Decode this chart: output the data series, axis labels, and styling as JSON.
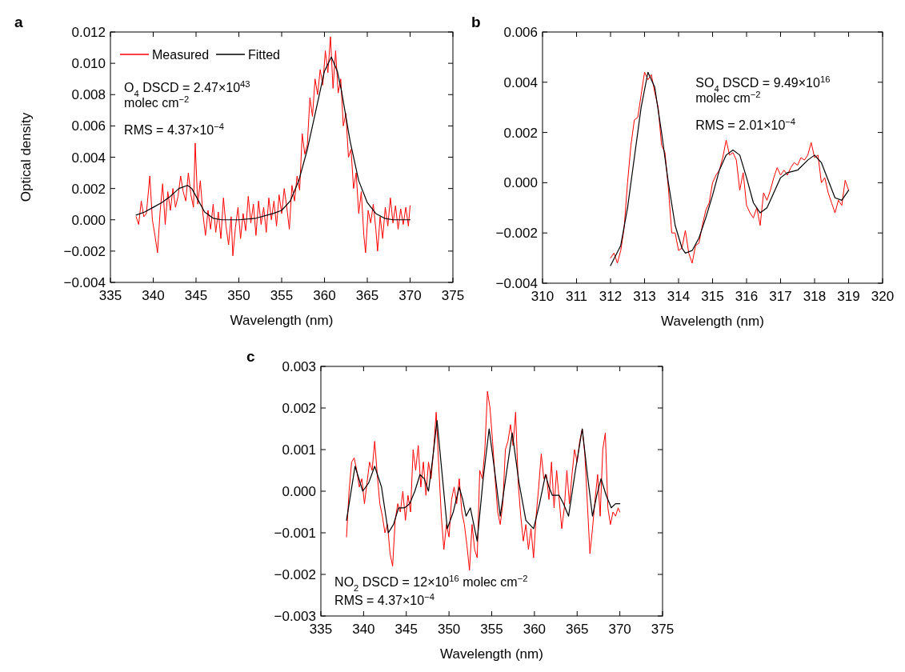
{
  "chart_data": [
    {
      "type": "line",
      "title": "a",
      "xlabel": "Wavelength (nm)",
      "ylabel": "Optical density",
      "legend": "top left",
      "xlim": [
        335,
        375
      ],
      "xticks": [
        335,
        340,
        345,
        350,
        355,
        360,
        365,
        370,
        375
      ],
      "ylim": [
        -0.004,
        0.012
      ],
      "yticks": [
        {
          "value": -0.004,
          "label": "−0.004"
        },
        {
          "value": -0.002,
          "label": "−0.002"
        },
        {
          "value": 0,
          "label": "0.000"
        },
        {
          "value": 0.002,
          "label": "0.002"
        },
        {
          "value": 0.004,
          "label": "0.004"
        },
        {
          "value": 0.006,
          "label": "0.006"
        },
        {
          "value": 0.008,
          "label": "0.008"
        },
        {
          "value": 0.01,
          "label": "0.010"
        },
        {
          "value": 0.012,
          "label": "0.012"
        }
      ],
      "annotations": [
        "O$_{4}$ DSCD = 2.47×10$^{43}$",
        "molec cm$^{−2}$",
        "RMS = 4.37×10$^{−4}$"
      ],
      "series": [
        {
          "name": "Measured",
          "color": "#ff0000",
          "x": [
            338.0,
            338.3,
            338.6,
            338.9,
            339.2,
            339.6,
            339.9,
            340.2,
            340.5,
            340.8,
            341.1,
            341.4,
            341.7,
            342.0,
            342.3,
            342.6,
            342.9,
            343.2,
            343.5,
            343.8,
            344.1,
            344.4,
            344.7,
            344.9,
            345.2,
            345.5,
            345.8,
            346.1,
            346.4,
            346.7,
            347.0,
            347.3,
            347.6,
            347.9,
            348.2,
            348.5,
            348.8,
            349.1,
            349.3,
            349.6,
            349.9,
            350.2,
            350.5,
            350.8,
            351.1,
            351.4,
            351.7,
            352.0,
            352.3,
            352.6,
            352.9,
            353.2,
            353.5,
            353.8,
            354.1,
            354.4,
            354.7,
            355.0,
            355.3,
            355.6,
            355.9,
            356.2,
            356.5,
            356.8,
            357.1,
            357.4,
            357.7,
            358.0,
            358.3,
            358.6,
            358.9,
            359.2,
            359.5,
            359.8,
            360.1,
            360.4,
            360.7,
            361.0,
            361.3,
            361.6,
            361.9,
            362.2,
            362.5,
            362.8,
            363.1,
            363.4,
            363.7,
            364.0,
            364.3,
            364.6,
            364.8,
            365.1,
            365.4,
            365.7,
            366.0,
            366.2,
            366.5,
            366.8,
            367.1,
            367.4,
            367.7,
            368.0,
            368.3,
            368.6,
            368.9,
            369.2,
            369.5,
            369.8,
            370.0
          ],
          "values": [
            0.0002,
            -0.0003,
            0.0012,
            0.0002,
            0.0004,
            0.0028,
            0.0,
            -0.001,
            -0.0021,
            0.0005,
            0.0023,
            -0.0003,
            0.0018,
            0.0006,
            0.002,
            0.0008,
            0.0015,
            0.0028,
            0.0018,
            0.0012,
            0.003,
            0.0016,
            0.0008,
            0.0049,
            0.001,
            0.0025,
            0.0004,
            -0.001,
            0.0006,
            -0.0006,
            0.001,
            -0.0008,
            0.0005,
            -0.0012,
            0.0014,
            -0.0004,
            -0.0016,
            0.0002,
            -0.0023,
            -0.0005,
            0.0008,
            -0.0012,
            0.0004,
            -0.0007,
            0.0015,
            -0.0002,
            0.001,
            -0.001,
            0.0012,
            -0.0003,
            0.0008,
            -0.0008,
            0.0014,
            0.0,
            0.0012,
            -0.0004,
            0.0016,
            0.0004,
            0.002,
            0.0008,
            -0.0006,
            0.0022,
            0.0012,
            0.0028,
            0.0019,
            0.0055,
            0.0042,
            0.0048,
            0.0078,
            0.0066,
            0.009,
            0.008,
            0.0096,
            0.0086,
            0.0108,
            0.0094,
            0.0117,
            0.0084,
            0.0108,
            0.0081,
            0.009,
            0.006,
            0.0068,
            0.004,
            0.0045,
            0.002,
            0.003,
            0.0004,
            0.0018,
            -0.001,
            -0.0021,
            0.0006,
            -0.0002,
            0.001,
            -0.0006,
            -0.002,
            0.0002,
            -0.0012,
            0.0008,
            -0.0004,
            0.0014,
            -0.0002,
            0.0009,
            -0.0006,
            0.0007,
            -0.0003,
            0.0008,
            -0.0004,
            0.0009
          ]
        },
        {
          "name": "Fitted",
          "color": "#000000",
          "x": [
            338,
            339,
            340,
            341,
            342,
            343,
            344,
            344.5,
            345,
            346,
            347,
            348,
            350,
            352,
            354,
            355,
            356,
            357,
            358,
            359,
            360,
            360.8,
            361.5,
            362,
            363,
            364,
            365,
            366,
            367,
            368,
            370
          ],
          "values": [
            0.0003,
            0.0005,
            0.0008,
            0.0011,
            0.0015,
            0.002,
            0.0022,
            0.002,
            0.0015,
            0.0005,
            0.0001,
            0.0,
            0.0,
            0.0001,
            0.0004,
            0.0006,
            0.0012,
            0.0025,
            0.0045,
            0.007,
            0.0095,
            0.0104,
            0.0095,
            0.0082,
            0.005,
            0.0025,
            0.0011,
            0.0004,
            0.0001,
            0.0,
            0.0
          ]
        }
      ]
    },
    {
      "type": "line",
      "title": "b",
      "xlabel": "Wavelength (nm)",
      "xlim": [
        310,
        320
      ],
      "xticks": [
        310,
        311,
        312,
        313,
        314,
        315,
        316,
        317,
        318,
        319,
        320
      ],
      "ylim": [
        -0.004,
        0.006
      ],
      "yticks": [
        {
          "value": -0.004,
          "label": "−0.004"
        },
        {
          "value": -0.002,
          "label": "−0.002"
        },
        {
          "value": 0,
          "label": "0.000"
        },
        {
          "value": 0.002,
          "label": "0.002"
        },
        {
          "value": 0.004,
          "label": "0.004"
        },
        {
          "value": 0.006,
          "label": "0.006"
        }
      ],
      "annotations": [
        "SO$_{4}$ DSCD = 9.49×10$^{16}$",
        "molec cm$^{−2}$",
        "RMS = 2.01×10$^{−4}$"
      ],
      "series": [
        {
          "color": "#ff0000",
          "x": [
            312.0,
            312.1,
            312.2,
            312.3,
            312.4,
            312.5,
            312.6,
            312.7,
            312.8,
            312.9,
            313.0,
            313.1,
            313.2,
            313.3,
            313.4,
            313.5,
            313.6,
            313.7,
            313.8,
            313.9,
            314.0,
            314.1,
            314.2,
            314.3,
            314.4,
            314.5,
            314.6,
            314.7,
            314.8,
            314.9,
            315.0,
            315.1,
            315.2,
            315.3,
            315.4,
            315.5,
            315.6,
            315.7,
            315.8,
            315.9,
            316.0,
            316.1,
            316.2,
            316.3,
            316.4,
            316.5,
            316.6,
            316.7,
            316.8,
            316.9,
            317.0,
            317.1,
            317.2,
            317.3,
            317.4,
            317.5,
            317.6,
            317.7,
            317.8,
            317.9,
            318.0,
            318.1,
            318.2,
            318.3,
            318.4,
            318.5,
            318.6,
            318.7,
            318.8,
            318.9,
            319.0
          ],
          "values": [
            -0.003,
            -0.0028,
            -0.0032,
            -0.0027,
            -0.0018,
            0.0,
            0.0015,
            0.0025,
            0.0026,
            0.0035,
            0.0044,
            0.0041,
            0.0043,
            0.0036,
            0.003,
            0.0015,
            0.0012,
            -0.0002,
            -0.002,
            -0.002,
            -0.0027,
            -0.0026,
            -0.0019,
            -0.0028,
            -0.0032,
            -0.0025,
            -0.0024,
            -0.0017,
            -0.0011,
            -0.0008,
            0.0,
            0.0003,
            0.0005,
            0.001,
            0.0017,
            0.0011,
            0.0012,
            0.0009,
            -0.0003,
            0.0004,
            -0.0009,
            -0.0012,
            -0.0014,
            -0.001,
            -0.0017,
            -0.0004,
            -0.0007,
            -0.0003,
            0.0002,
            0.0006,
            0.0003,
            0.0005,
            0.0003,
            0.0006,
            0.0008,
            0.0007,
            0.001,
            0.0009,
            0.0011,
            0.0016,
            0.001,
            0.0011,
            0.0,
            0.0002,
            -0.0004,
            -0.0008,
            -0.0012,
            -0.0007,
            -0.0009,
            0.0001,
            -0.0003
          ]
        },
        {
          "color": "#000000",
          "x": [
            312.0,
            312.3,
            312.5,
            312.7,
            312.9,
            313.1,
            313.3,
            313.5,
            313.7,
            313.9,
            314.1,
            314.2,
            314.4,
            314.6,
            314.8,
            315.0,
            315.2,
            315.4,
            315.6,
            315.8,
            316.0,
            316.2,
            316.4,
            316.6,
            316.8,
            317.0,
            317.2,
            317.5,
            317.8,
            318.0,
            318.2,
            318.4,
            318.6,
            318.8,
            319.0
          ],
          "values": [
            -0.0033,
            -0.0025,
            -0.001,
            0.001,
            0.003,
            0.0044,
            0.0038,
            0.002,
            0.0,
            -0.0017,
            -0.0026,
            -0.0028,
            -0.0027,
            -0.0022,
            -0.0014,
            -0.0005,
            0.0005,
            0.0011,
            0.0013,
            0.0011,
            0.0002,
            -0.0008,
            -0.0012,
            -0.001,
            -0.0004,
            0.0002,
            0.0004,
            0.0005,
            0.0009,
            0.0011,
            0.0008,
            0.0001,
            -0.0006,
            -0.0007,
            -0.0003
          ]
        }
      ]
    },
    {
      "type": "line",
      "title": "c",
      "xlabel": "Wavelength (nm)",
      "xlim": [
        335,
        375
      ],
      "xticks": [
        335,
        340,
        345,
        350,
        355,
        360,
        365,
        370,
        375
      ],
      "ylim": [
        -0.003,
        0.003
      ],
      "yticks": [
        {
          "value": -0.003,
          "label": "−0.003"
        },
        {
          "value": -0.002,
          "label": "−0.002"
        },
        {
          "value": -0.001,
          "label": "−0.001"
        },
        {
          "value": 0,
          "label": "0.000"
        },
        {
          "value": 0.001,
          "label": "0.001"
        },
        {
          "value": 0.002,
          "label": "0.002"
        },
        {
          "value": 0.003,
          "label": "0.003"
        }
      ],
      "annotations": [
        "NO$_{2}$ DSCD = 12×10$^{16}$ molec cm$^{−2}$",
        "RMS = 4.37×10$^{−4}$"
      ],
      "series": [
        {
          "color": "#ff0000",
          "x": [
            338.0,
            338.3,
            338.6,
            338.9,
            339.2,
            339.5,
            339.8,
            340.1,
            340.4,
            340.7,
            341.0,
            341.3,
            341.6,
            341.9,
            342.2,
            342.5,
            342.8,
            343.1,
            343.4,
            343.7,
            344.0,
            344.3,
            344.6,
            344.9,
            345.2,
            345.5,
            345.8,
            346.1,
            346.4,
            346.7,
            347.0,
            347.3,
            347.6,
            347.9,
            348.2,
            348.5,
            348.8,
            349.1,
            349.4,
            349.7,
            350.0,
            350.3,
            350.6,
            350.9,
            351.2,
            351.5,
            351.8,
            352.1,
            352.4,
            352.7,
            353.0,
            353.3,
            353.6,
            353.9,
            354.2,
            354.5,
            354.8,
            355.1,
            355.4,
            355.7,
            356.0,
            356.3,
            356.6,
            356.9,
            357.2,
            357.5,
            357.8,
            358.1,
            358.4,
            358.7,
            359.0,
            359.3,
            359.6,
            359.9,
            360.2,
            360.5,
            360.8,
            361.1,
            361.4,
            361.7,
            362.0,
            362.3,
            362.6,
            362.9,
            363.2,
            363.5,
            363.8,
            364.1,
            364.4,
            364.7,
            365.0,
            365.3,
            365.6,
            365.9,
            366.2,
            366.5,
            366.8,
            367.1,
            367.4,
            367.7,
            368.0,
            368.3,
            368.6,
            368.9,
            369.2,
            369.5,
            369.8,
            370.0
          ],
          "values": [
            -0.0011,
            0.0,
            0.0007,
            0.0008,
            0.0005,
            0.0001,
            0.0003,
            -0.0003,
            0.0002,
            0.0007,
            0.0005,
            0.0012,
            0.0004,
            -0.0003,
            -0.0006,
            -0.001,
            -0.0008,
            -0.0015,
            -0.0018,
            -0.0007,
            -0.0003,
            -0.0005,
            0.0,
            -0.0007,
            -0.0001,
            -0.0005,
            0.001,
            0.0005,
            0.0011,
            0.0001,
            0.0007,
            -0.0001,
            0.0007,
            0.0003,
            0.001,
            0.0019,
            0.0006,
            -0.0006,
            -0.0014,
            -0.0008,
            -0.0011,
            -0.0002,
            0.0001,
            -0.0003,
            0.0003,
            -0.0005,
            -0.0008,
            -0.0013,
            -0.0019,
            -0.0008,
            -0.0014,
            -0.0016,
            0.0005,
            0.0003,
            0.001,
            0.0024,
            0.002,
            0.0012,
            0.0003,
            -0.0005,
            -0.0008,
            -0.0003,
            0.001,
            0.0012,
            0.0016,
            0.0011,
            0.0019,
            0.0002,
            -0.0006,
            -0.0012,
            -0.0008,
            -0.0014,
            -0.0009,
            -0.0016,
            -0.0006,
            0.0001,
            0.0009,
            0.0003,
            0.0004,
            -0.0002,
            0.0007,
            -0.0004,
            0.0005,
            -0.0002,
            -0.0009,
            -0.0004,
            0.0005,
            -0.0003,
            0.0004,
            0.001,
            0.0007,
            0.0012,
            0.0015,
            0.0009,
            -0.0003,
            -0.0015,
            -0.0009,
            -0.0002,
            0.0004,
            -0.0006,
            0.001,
            0.0014,
            -0.0004,
            -0.0008,
            -0.0005,
            -0.0006,
            -0.0004,
            -0.0005
          ]
        },
        {
          "color": "#000000",
          "x": [
            338.0,
            339.0,
            339.9,
            340.6,
            341.3,
            342.1,
            342.9,
            343.5,
            344.1,
            344.8,
            345.4,
            346.0,
            346.6,
            347.1,
            347.6,
            348.1,
            348.6,
            349.2,
            349.8,
            350.5,
            351.2,
            351.6,
            352.0,
            352.5,
            352.9,
            353.3,
            354.0,
            354.7,
            355.4,
            356.0,
            356.7,
            357.4,
            358.2,
            359.0,
            359.9,
            360.6,
            361.3,
            361.7,
            362.1,
            362.9,
            363.4,
            364.0,
            364.8,
            365.6,
            366.2,
            366.8,
            367.3,
            367.8,
            368.4,
            369.0,
            369.5,
            370.0
          ],
          "values": [
            -0.0007,
            0.0006,
            0.0,
            0.0002,
            0.0006,
            0.0001,
            -0.001,
            -0.0008,
            -0.0004,
            -0.0004,
            -0.0003,
            0.0,
            0.0004,
            0.0003,
            0.0,
            0.0008,
            0.0017,
            0.0004,
            -0.0009,
            -0.0005,
            0.0001,
            -0.0002,
            -0.0006,
            -0.0004,
            -0.0008,
            -0.0012,
            0.0003,
            0.0015,
            0.0004,
            -0.0006,
            0.0004,
            0.0014,
            0.0002,
            -0.0007,
            -0.0009,
            -0.0003,
            0.0004,
            0.0001,
            -0.0001,
            -0.0001,
            -0.0003,
            -0.0006,
            0.0005,
            0.0015,
            0.0004,
            -0.0006,
            -0.0001,
            0.0003,
            -0.0001,
            -0.0004,
            -0.0003,
            -0.0003
          ]
        }
      ]
    }
  ]
}
